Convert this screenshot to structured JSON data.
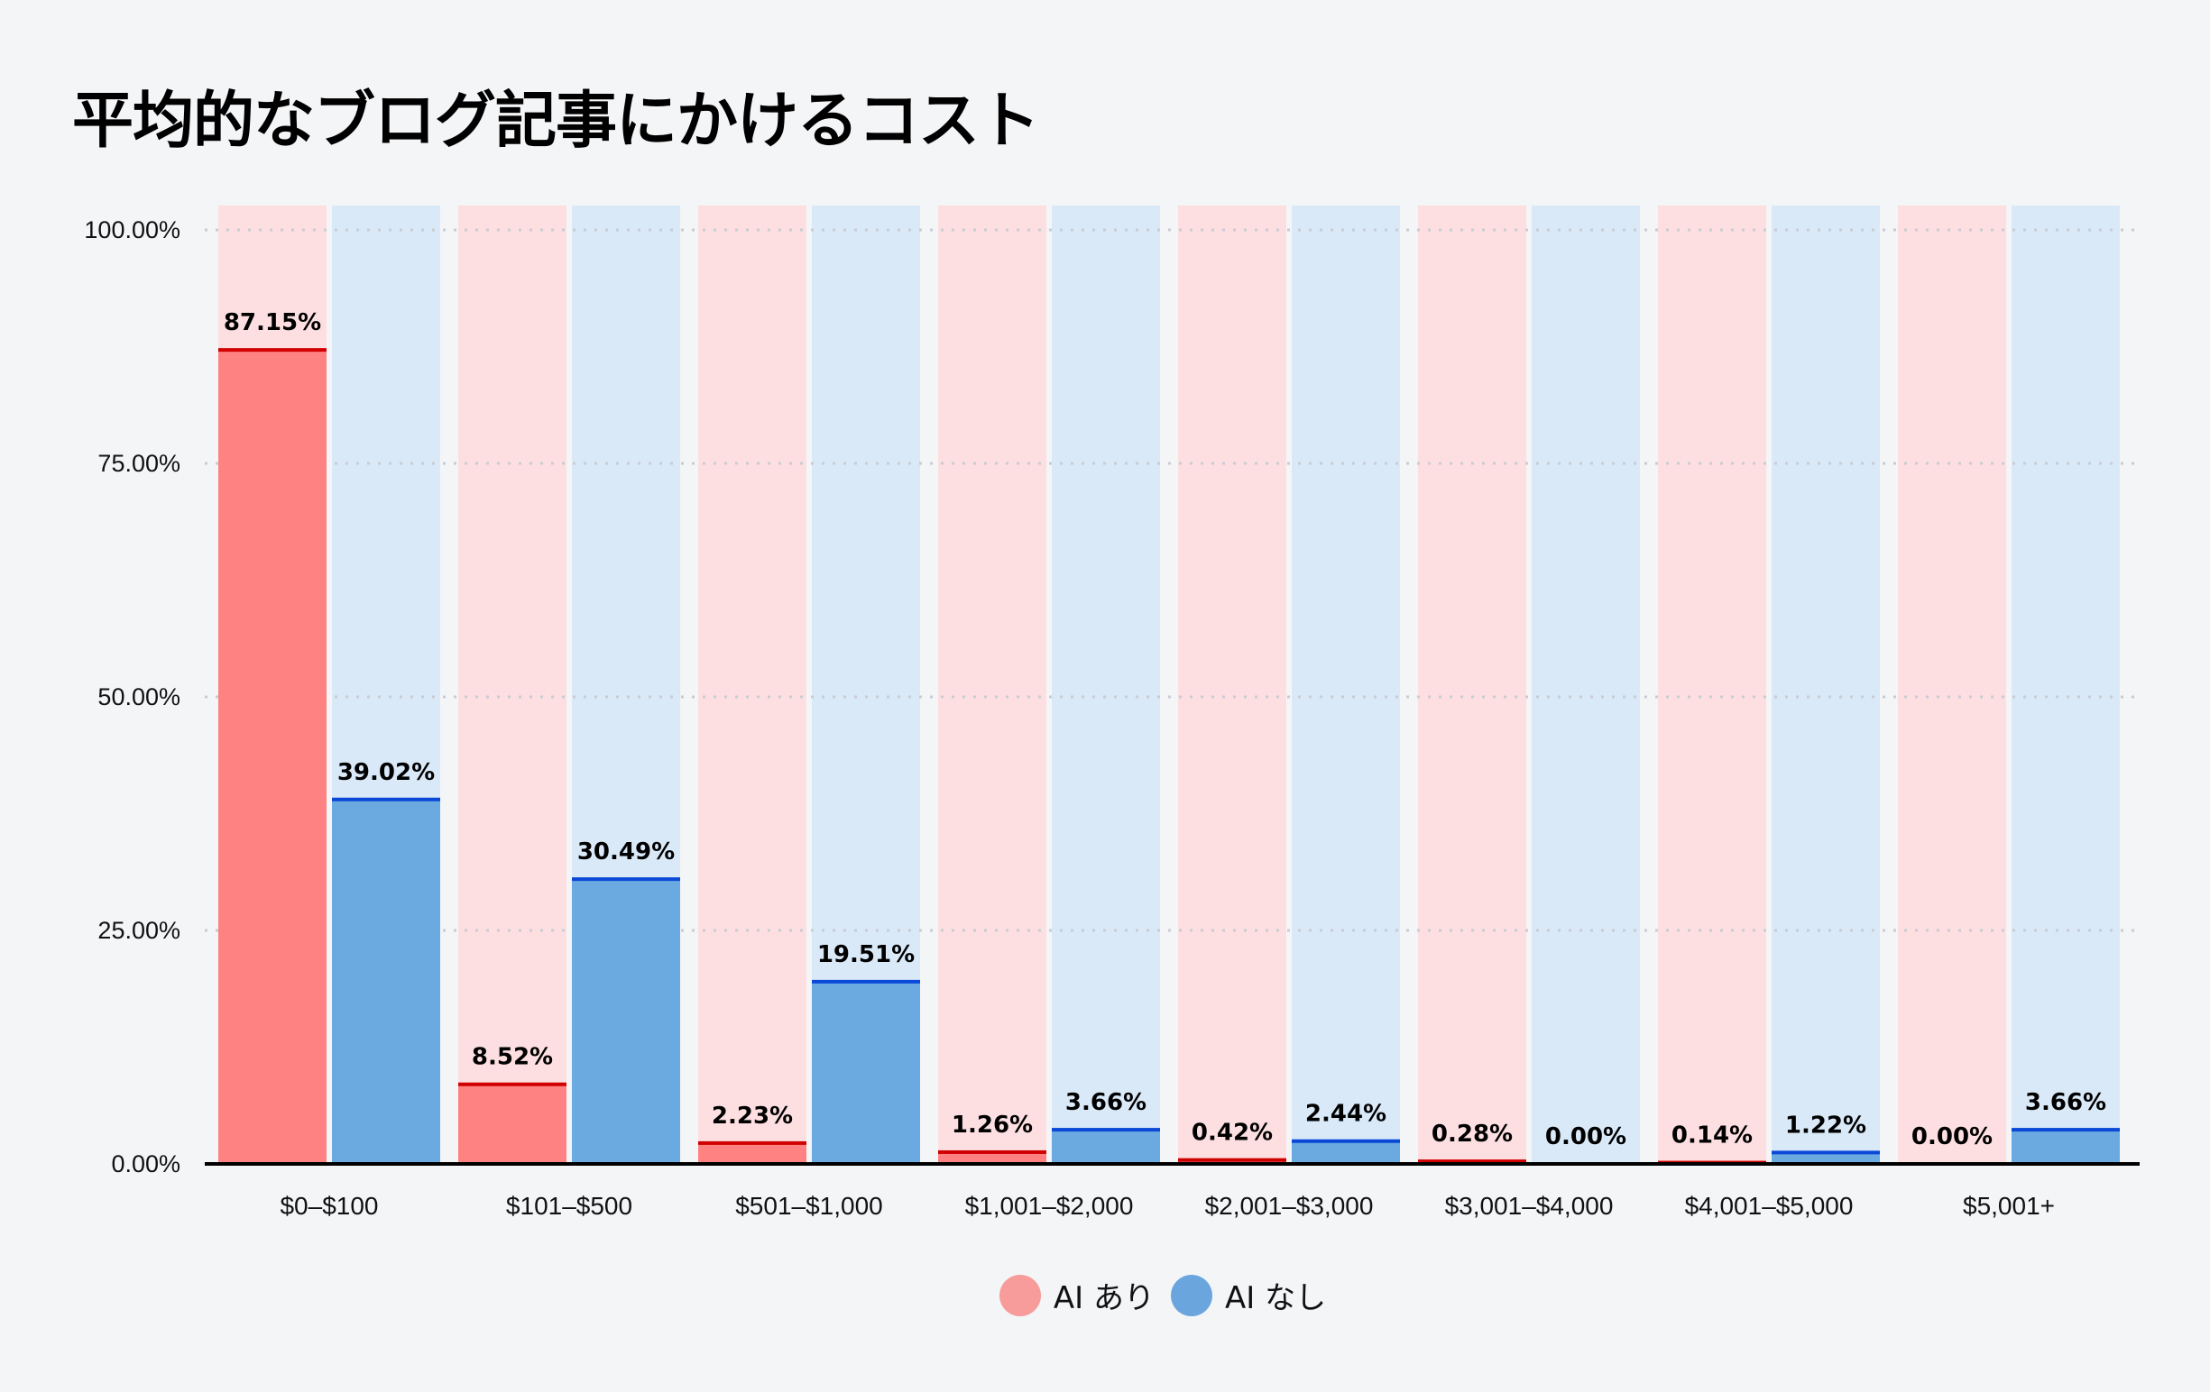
{
  "chart_data": {
    "type": "bar",
    "title": "平均的なブログ記事にかけるコスト",
    "categories": [
      "$0–$100",
      "$101–$500",
      "$501–$1,000",
      "$1,001–$2,000",
      "$2,001–$3,000",
      "$3,001–$4,000",
      "$4,001–$5,000",
      "$5,001+"
    ],
    "series": [
      {
        "name": "AI あり",
        "values": [
          87.15,
          8.52,
          2.23,
          1.26,
          0.42,
          0.28,
          0.14,
          0.0
        ],
        "labels": [
          "87.15%",
          "8.52%",
          "2.23%",
          "1.26%",
          "0.42%",
          "0.28%",
          "0.14%",
          "0.00%"
        ],
        "color": "#ff8282",
        "line_color": "#d00000",
        "bg_color": "#fddfe1",
        "legend_color": "#f79b9b"
      },
      {
        "name": "AI なし",
        "values": [
          39.02,
          30.49,
          19.51,
          3.66,
          2.44,
          0.0,
          1.22,
          3.66
        ],
        "labels": [
          "39.02%",
          "30.49%",
          "19.51%",
          "3.66%",
          "2.44%",
          "0.00%",
          "1.22%",
          "3.66%"
        ],
        "color": "#6aaae0",
        "line_color": "#0a48d8",
        "bg_color": "#d9e9f8",
        "legend_color": "#6aa6dd"
      }
    ],
    "yticks": [
      "0.00%",
      "25.00%",
      "50.00%",
      "75.00%",
      "100.00%"
    ],
    "ylim": [
      0,
      100
    ],
    "grid": true,
    "legend": "bottom"
  }
}
